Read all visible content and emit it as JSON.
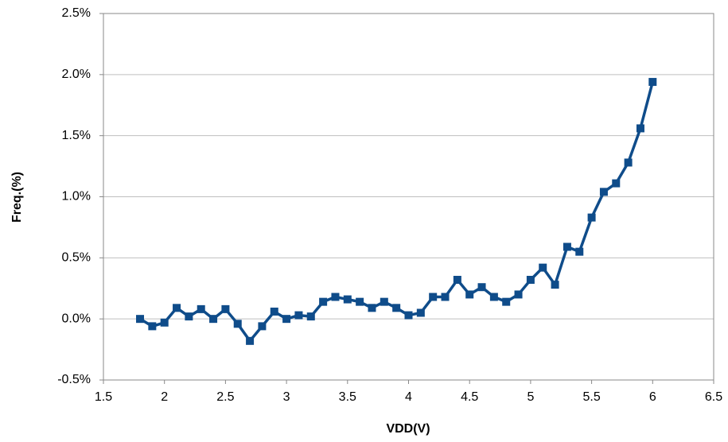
{
  "chart_data": {
    "type": "line",
    "xlabel": "VDD(V)",
    "ylabel": "Freq.(%)",
    "series": [
      {
        "color": "#0f4c8a",
        "x": [
          1.8,
          1.9,
          2.0,
          2.1,
          2.2,
          2.3,
          2.4,
          2.5,
          2.6,
          2.7,
          2.8,
          2.9,
          3.0,
          3.1,
          3.2,
          3.3,
          3.4,
          3.5,
          3.6,
          3.7,
          3.8,
          3.9,
          4.0,
          4.1,
          4.2,
          4.3,
          4.4,
          4.5,
          4.6,
          4.7,
          4.8,
          4.9,
          5.0,
          5.1,
          5.2,
          5.3,
          5.4,
          5.5,
          5.6,
          5.7,
          5.8,
          5.9,
          6.0
        ],
        "values": [
          0.0,
          -0.06,
          -0.03,
          0.09,
          0.02,
          0.08,
          0.0,
          0.08,
          -0.04,
          -0.18,
          -0.06,
          0.06,
          0.0,
          0.03,
          0.02,
          0.14,
          0.18,
          0.16,
          0.14,
          0.09,
          0.14,
          0.09,
          0.03,
          0.05,
          0.18,
          0.18,
          0.32,
          0.2,
          0.26,
          0.18,
          0.14,
          0.2,
          0.32,
          0.42,
          0.28,
          0.59,
          0.55,
          0.83,
          1.04,
          1.11,
          1.28,
          1.56,
          1.94
        ]
      }
    ],
    "xlim": [
      1.5,
      6.5
    ],
    "xticks": [
      1.5,
      2,
      2.5,
      3,
      3.5,
      4,
      4.5,
      5,
      5.5,
      6,
      6.5
    ],
    "ylim": [
      -0.5,
      2.5
    ],
    "yticks": [
      {
        "value": -0.5,
        "label": "-0.5%"
      },
      {
        "value": 0,
        "label": "0.0%"
      },
      {
        "value": 0.5,
        "label": "0.5%"
      },
      {
        "value": 1,
        "label": "1.0%"
      },
      {
        "value": 1.5,
        "label": "1.5%"
      },
      {
        "value": 2,
        "label": "2.0%"
      },
      {
        "value": 2.5,
        "label": "2.5%"
      }
    ],
    "grid": true
  }
}
